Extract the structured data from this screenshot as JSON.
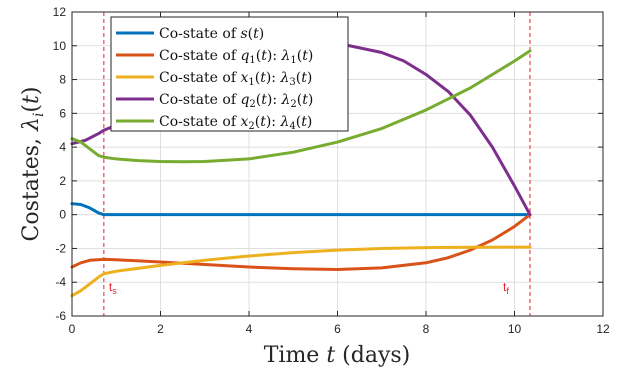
{
  "chart_data": {
    "type": "line",
    "xlabel": "Time t (days)",
    "ylabel": "Costates, λi(t)",
    "xlim": [
      0,
      12
    ],
    "ylim": [
      -6,
      12
    ],
    "xticks": [
      0,
      2,
      4,
      6,
      8,
      10,
      12
    ],
    "yticks": [
      -6,
      -4,
      -2,
      0,
      2,
      4,
      6,
      8,
      10,
      12
    ],
    "xtick_labels": [
      "0",
      "2",
      "4",
      "6",
      "8",
      "10",
      "12"
    ],
    "ytick_labels": [
      "-6",
      "-4",
      "-2",
      "0",
      "2",
      "4",
      "6",
      "8",
      "10",
      "12"
    ],
    "grid": true,
    "legend_position": "top-left",
    "series": [
      {
        "name": "Co-state of s(t)",
        "color": "#0072BD",
        "x": [
          0,
          0.2,
          0.4,
          0.6,
          0.72,
          1,
          2,
          4,
          6,
          8,
          10,
          10.35
        ],
        "y": [
          0.65,
          0.6,
          0.4,
          0.1,
          0,
          0,
          0,
          0,
          0,
          0,
          0,
          0
        ]
      },
      {
        "name": "Co-state of q1(t): λ1(t)",
        "color": "#D95319",
        "x": [
          0,
          0.2,
          0.4,
          0.72,
          1,
          2,
          3,
          4,
          5,
          6,
          7,
          8,
          8.5,
          9,
          9.5,
          10,
          10.35
        ],
        "y": [
          -3.1,
          -2.85,
          -2.7,
          -2.65,
          -2.67,
          -2.8,
          -2.95,
          -3.1,
          -3.2,
          -3.25,
          -3.15,
          -2.85,
          -2.55,
          -2.1,
          -1.5,
          -0.7,
          0
        ]
      },
      {
        "name": "Co-state of x1(t): λ3(t)",
        "color": "#EDB120",
        "x": [
          0,
          0.2,
          0.4,
          0.6,
          0.72,
          1,
          2,
          3,
          4,
          5,
          6,
          7,
          8,
          9,
          10,
          10.35
        ],
        "y": [
          -4.8,
          -4.5,
          -4.1,
          -3.7,
          -3.5,
          -3.35,
          -3.0,
          -2.7,
          -2.45,
          -2.25,
          -2.1,
          -2.0,
          -1.95,
          -1.93,
          -1.92,
          -1.92
        ]
      },
      {
        "name": "Co-state of q2(t): λ2(t)",
        "color": "#7E2F8E",
        "x": [
          0,
          0.3,
          0.6,
          0.72,
          1.1,
          1.5,
          2,
          3,
          4,
          5,
          6,
          7,
          7.5,
          8,
          8.5,
          9,
          9.5,
          10,
          10.35
        ],
        "y": [
          4.2,
          4.4,
          4.8,
          5.0,
          5.4,
          6.5,
          8.0,
          9.6,
          10.2,
          10.3,
          10.15,
          9.6,
          9.1,
          8.3,
          7.3,
          5.9,
          4.0,
          1.7,
          0
        ]
      },
      {
        "name": "Co-state of x2(t): λ4(t)",
        "color": "#77AC30",
        "x": [
          0,
          0.2,
          0.4,
          0.6,
          0.72,
          1,
          1.5,
          2,
          2.5,
          3,
          4,
          5,
          6,
          7,
          8,
          9,
          10,
          10.35
        ],
        "y": [
          4.5,
          4.3,
          3.9,
          3.5,
          3.4,
          3.3,
          3.2,
          3.15,
          3.13,
          3.15,
          3.3,
          3.7,
          4.3,
          5.1,
          6.2,
          7.5,
          9.1,
          9.7
        ]
      }
    ],
    "vlines": [
      {
        "x": 0.72,
        "label": "t_s",
        "label_main": "t",
        "label_sub": "s",
        "color": "#E8202A"
      },
      {
        "x": 10.35,
        "label": "t_f",
        "label_main": "t",
        "label_sub": "f",
        "color": "#E8202A"
      }
    ]
  }
}
